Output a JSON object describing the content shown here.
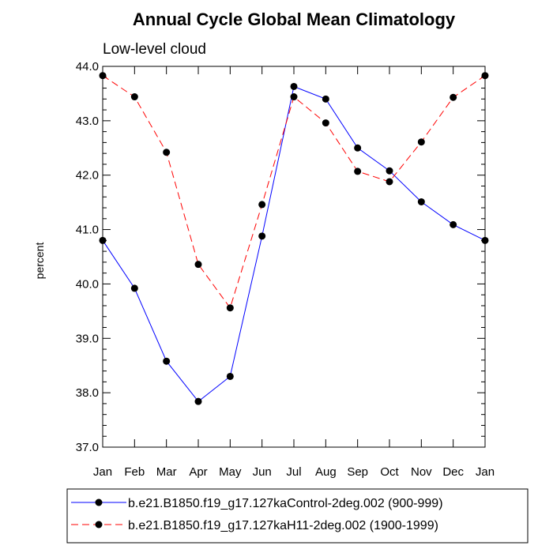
{
  "chart_data": {
    "type": "line",
    "title": "Annual Cycle Global Mean Climatology",
    "subtitle": "Low-level cloud",
    "xlabel": "",
    "ylabel": "percent",
    "categories": [
      "Jan",
      "Feb",
      "Mar",
      "Apr",
      "May",
      "Jun",
      "Jul",
      "Aug",
      "Sep",
      "Oct",
      "Nov",
      "Dec",
      "Jan"
    ],
    "ylim": [
      37.0,
      44.0
    ],
    "yticks": [
      "37.0",
      "38.0",
      "39.0",
      "40.0",
      "41.0",
      "42.0",
      "43.0",
      "44.0"
    ],
    "series": [
      {
        "name": "b.e21.B1850.f19_g17.127kaControl-2deg.002 (900-999)",
        "color": "#0000ff",
        "dash": "solid",
        "values": [
          40.8,
          39.92,
          38.58,
          37.84,
          38.3,
          40.88,
          43.63,
          43.4,
          42.5,
          42.08,
          41.51,
          41.09,
          40.8
        ]
      },
      {
        "name": "b.e21.B1850.f19_g17.127kaH11-2deg.002 (1900-1999)",
        "color": "#ff0000",
        "dash": "dashed",
        "values": [
          43.83,
          43.44,
          42.42,
          40.36,
          39.56,
          41.46,
          43.44,
          42.96,
          42.07,
          41.88,
          42.61,
          43.43,
          43.83
        ]
      }
    ],
    "legend_position": "bottom",
    "grid": false
  }
}
